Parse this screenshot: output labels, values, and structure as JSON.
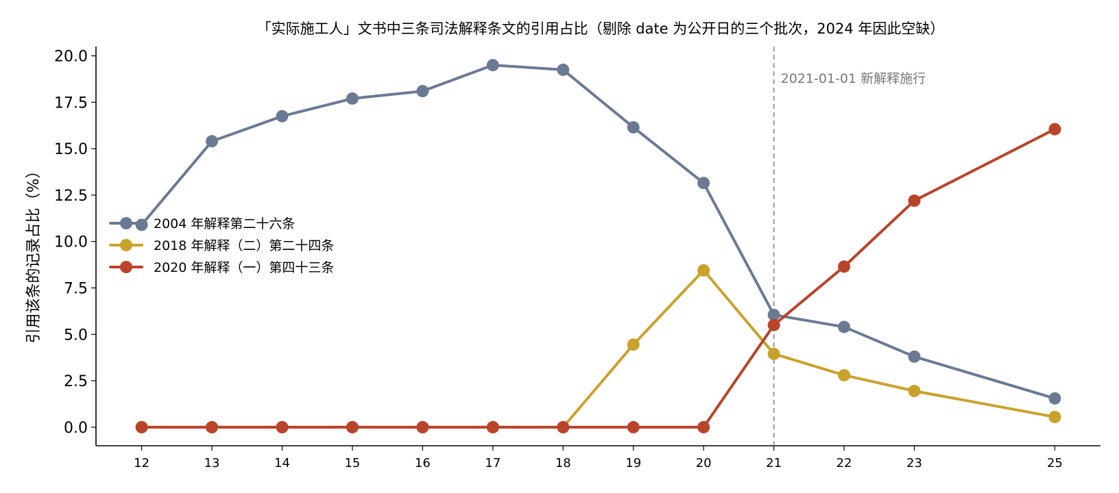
{
  "chart_data": {
    "type": "line",
    "title": "「实际施工人」文书中三条司法解释条文的引用占比（剔除 date 为公开日的三个批次，2024 年因此空缺）",
    "xlabel": "",
    "ylabel": "引用该条的记录占比（%）",
    "x": [
      12,
      13,
      14,
      15,
      16,
      17,
      18,
      19,
      20,
      21,
      22,
      23,
      25
    ],
    "x_ticks": [
      "12",
      "13",
      "14",
      "15",
      "16",
      "17",
      "18",
      "19",
      "20",
      "21",
      "22",
      "23",
      "25"
    ],
    "y_ticks": [
      "0.0",
      "2.5",
      "5.0",
      "7.5",
      "10.0",
      "12.5",
      "15.0",
      "17.5",
      "20.0"
    ],
    "xlim": [
      11.35,
      25.65
    ],
    "ylim": [
      -1.0,
      20.5
    ],
    "grid": false,
    "legend_position": "center-left",
    "series": [
      {
        "name": "2004 年解释第二十六条",
        "color": "#6b7a93",
        "values": [
          10.9,
          15.4,
          16.75,
          17.7,
          18.1,
          19.5,
          19.25,
          16.15,
          13.15,
          6.05,
          5.4,
          3.8,
          1.55
        ]
      },
      {
        "name": "2018 年解释（二）第二十四条",
        "color": "#c9a22b",
        "values": [
          0.0,
          0.0,
          0.0,
          0.0,
          0.0,
          0.0,
          0.0,
          4.45,
          8.45,
          3.95,
          2.8,
          1.95,
          0.55
        ]
      },
      {
        "name": "2020 年解释（一）第四十三条",
        "color": "#b9442a",
        "values": [
          0.0,
          0.0,
          0.0,
          0.0,
          0.0,
          0.0,
          0.0,
          0.0,
          0.0,
          5.5,
          8.65,
          12.2,
          16.05
        ]
      }
    ],
    "annotations": [
      {
        "x": 21,
        "type": "vertical-dashed-line",
        "text": "2021-01-01 新解释施行",
        "color": "#999999"
      }
    ]
  }
}
